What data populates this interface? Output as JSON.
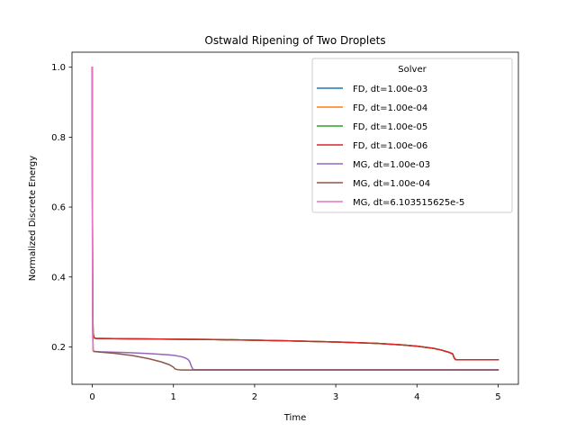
{
  "chart_data": {
    "type": "line",
    "title": "Ostwald Ripening of Two Droplets",
    "xlabel": "Time",
    "ylabel": "Normalized Discrete Energy",
    "xlim": [
      -0.25,
      5.25
    ],
    "ylim": [
      0.093,
      1.043
    ],
    "xticks": [
      0,
      1,
      2,
      3,
      4,
      5
    ],
    "yticks": [
      0.2,
      0.4,
      0.6,
      0.8,
      1.0
    ],
    "xtick_labels": [
      "0",
      "1",
      "2",
      "3",
      "4",
      "5"
    ],
    "ytick_labels": [
      "0.2",
      "0.4",
      "0.6",
      "0.8",
      "1.0"
    ],
    "grid": false,
    "legend": {
      "title": "Solver",
      "placement": "upper right"
    },
    "series": [
      {
        "name": "FD, dt=1.00e-03",
        "color": "#1f77b4",
        "x": [
          0,
          0.002,
          0.005,
          0.01,
          0.02,
          0.05,
          0.1,
          0.5,
          1.0,
          1.5,
          2.0,
          2.5,
          3.0,
          3.5,
          3.8,
          4.0,
          4.2,
          4.3,
          4.4,
          4.44,
          4.46,
          4.48,
          4.5,
          4.7,
          5.0
        ],
        "y": [
          1.0,
          0.6,
          0.3,
          0.24,
          0.226,
          0.224,
          0.224,
          0.223,
          0.222,
          0.221,
          0.219,
          0.217,
          0.214,
          0.21,
          0.206,
          0.202,
          0.196,
          0.191,
          0.184,
          0.18,
          0.168,
          0.163,
          0.163,
          0.163,
          0.163
        ]
      },
      {
        "name": "FD, dt=1.00e-04",
        "color": "#ff7f0e",
        "x": [
          0,
          0.002,
          0.005,
          0.01,
          0.02,
          0.05,
          0.1,
          0.5,
          1.0,
          1.5,
          2.0,
          2.5,
          3.0,
          3.5,
          3.8,
          4.0,
          4.2,
          4.3,
          4.4,
          4.44,
          4.46,
          4.48,
          4.5,
          4.7,
          5.0
        ],
        "y": [
          1.0,
          0.6,
          0.3,
          0.24,
          0.226,
          0.224,
          0.224,
          0.223,
          0.222,
          0.221,
          0.219,
          0.217,
          0.214,
          0.21,
          0.206,
          0.202,
          0.196,
          0.191,
          0.184,
          0.18,
          0.168,
          0.163,
          0.163,
          0.163,
          0.163
        ]
      },
      {
        "name": "FD, dt=1.00e-05",
        "color": "#2ca02c",
        "x": [
          0,
          0.002,
          0.005,
          0.01,
          0.02,
          0.05,
          0.1,
          0.5,
          1.0,
          1.5,
          2.0,
          2.5,
          3.0,
          3.5,
          3.8,
          4.0,
          4.2,
          4.3,
          4.4,
          4.44,
          4.46,
          4.48,
          4.5,
          4.7,
          5.0
        ],
        "y": [
          1.0,
          0.6,
          0.3,
          0.24,
          0.226,
          0.224,
          0.224,
          0.223,
          0.222,
          0.221,
          0.219,
          0.217,
          0.214,
          0.21,
          0.206,
          0.202,
          0.196,
          0.191,
          0.184,
          0.18,
          0.168,
          0.163,
          0.163,
          0.163,
          0.163
        ]
      },
      {
        "name": "FD, dt=1.00e-06",
        "color": "#d62728",
        "x": [
          0,
          0.002,
          0.005,
          0.01,
          0.02,
          0.05,
          0.1,
          0.5,
          1.0,
          1.5,
          2.0,
          2.5,
          3.0,
          3.5,
          3.8,
          4.0,
          4.2,
          4.3,
          4.4,
          4.44,
          4.46,
          4.48,
          4.5,
          4.7,
          5.0
        ],
        "y": [
          1.0,
          0.6,
          0.3,
          0.24,
          0.226,
          0.224,
          0.224,
          0.223,
          0.222,
          0.221,
          0.219,
          0.217,
          0.214,
          0.21,
          0.206,
          0.202,
          0.196,
          0.191,
          0.184,
          0.18,
          0.168,
          0.163,
          0.163,
          0.163,
          0.163
        ]
      },
      {
        "name": "MG, dt=1.00e-03",
        "color": "#9467bd",
        "x": [
          0,
          0.002,
          0.005,
          0.01,
          0.02,
          0.1,
          0.4,
          0.7,
          0.9,
          1.0,
          1.1,
          1.15,
          1.18,
          1.2,
          1.22,
          1.24,
          1.26,
          1.5,
          2.0,
          3.0,
          4.0,
          5.0
        ],
        "y": [
          1.0,
          0.5,
          0.25,
          0.19,
          0.187,
          0.186,
          0.184,
          0.181,
          0.178,
          0.176,
          0.172,
          0.168,
          0.164,
          0.158,
          0.145,
          0.136,
          0.135,
          0.135,
          0.135,
          0.135,
          0.135,
          0.135
        ]
      },
      {
        "name": "MG, dt=1.00e-04",
        "color": "#8c564b",
        "x": [
          0,
          0.002,
          0.005,
          0.01,
          0.02,
          0.1,
          0.3,
          0.5,
          0.7,
          0.85,
          0.95,
          1.0,
          1.02,
          1.05,
          1.1,
          1.5,
          2.0,
          3.0,
          4.0,
          5.0
        ],
        "y": [
          1.0,
          0.5,
          0.25,
          0.19,
          0.187,
          0.185,
          0.181,
          0.175,
          0.166,
          0.157,
          0.149,
          0.142,
          0.137,
          0.135,
          0.134,
          0.134,
          0.134,
          0.134,
          0.134,
          0.134
        ]
      },
      {
        "name": "MG, dt=6.103515625e-5",
        "color": "#e377c2",
        "x": [
          0,
          0.001,
          0.002,
          0.004,
          0.006,
          0.01
        ],
        "y": [
          1.0,
          0.7,
          0.45,
          0.3,
          0.22,
          0.19
        ]
      }
    ]
  }
}
